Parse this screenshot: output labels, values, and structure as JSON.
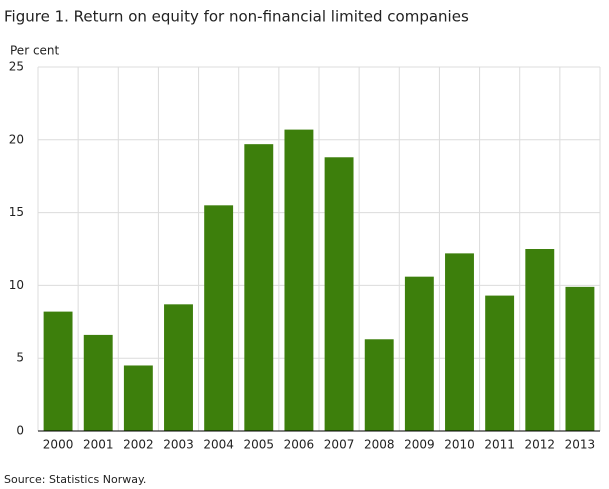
{
  "chart_data": {
    "type": "bar",
    "title": "Figure 1. Return on equity for non-financial limited companies",
    "y_label": "Per cent",
    "source": "Source: Statistics Norway.",
    "categories": [
      "2000",
      "2001",
      "2002",
      "2003",
      "2004",
      "2005",
      "2006",
      "2007",
      "2008",
      "2009",
      "2010",
      "2011",
      "2012",
      "2013"
    ],
    "values": [
      8.2,
      6.6,
      4.5,
      8.7,
      15.5,
      19.7,
      20.7,
      18.8,
      6.3,
      10.6,
      12.2,
      9.3,
      12.5,
      9.9
    ],
    "color": "#3d7f0c",
    "ylim": [
      0,
      25
    ],
    "yticks": [
      0,
      5,
      10,
      15,
      20,
      25
    ],
    "grid": true
  }
}
